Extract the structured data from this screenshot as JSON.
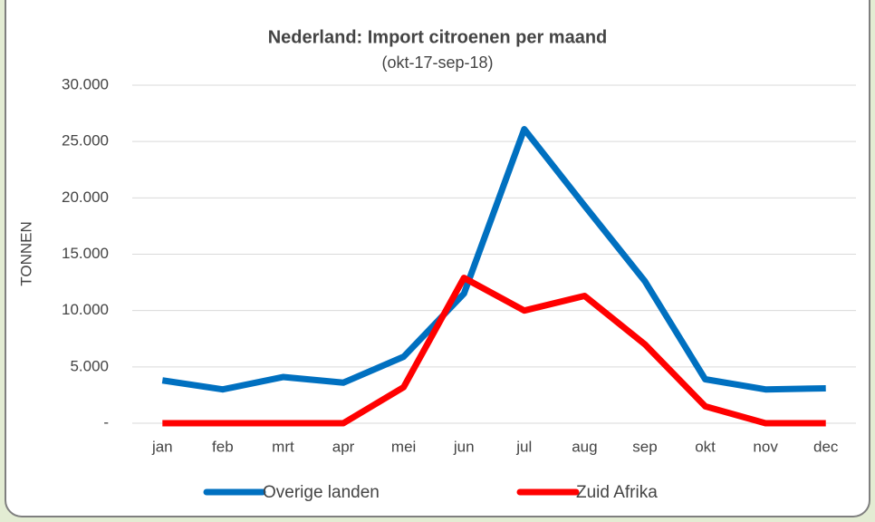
{
  "chart_data": {
    "type": "line",
    "title": "Nederland: Import citroenen per maand",
    "subtitle": "(okt-17-sep-18)",
    "y_label": "TONNEN",
    "categories": [
      "jan",
      "feb",
      "mrt",
      "apr",
      "mei",
      "jun",
      "jul",
      "aug",
      "sep",
      "okt",
      "nov",
      "dec"
    ],
    "series": [
      {
        "name": "Overige landen",
        "color": "#0070c0",
        "values": [
          3800,
          3000,
          4100,
          3600,
          5900,
          11500,
          26100,
          19300,
          12600,
          3900,
          3000,
          3100
        ]
      },
      {
        "name": "Zuid Afrika",
        "color": "#ff0000",
        "values": [
          0,
          0,
          0,
          0,
          3200,
          12900,
          10000,
          11300,
          7000,
          1500,
          0,
          0
        ]
      }
    ],
    "ylim": [
      0,
      30000
    ],
    "yticks": [
      {
        "value": 0,
        "label": "-"
      },
      {
        "value": 5000,
        "label": "5.000"
      },
      {
        "value": 10000,
        "label": "10.000"
      },
      {
        "value": 15000,
        "label": "15.000"
      },
      {
        "value": 20000,
        "label": "20.000"
      },
      {
        "value": 25000,
        "label": "25.000"
      },
      {
        "value": 30000,
        "label": "30.000"
      }
    ],
    "grid": true,
    "legend": "bottom"
  }
}
